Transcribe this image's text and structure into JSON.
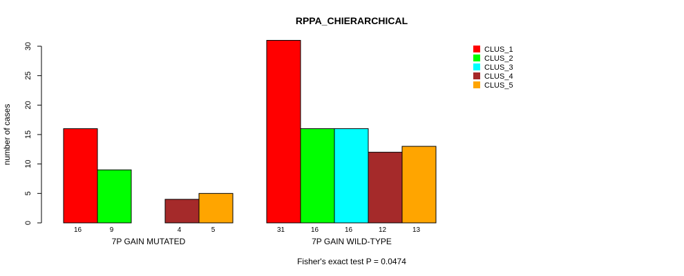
{
  "chart_data": {
    "type": "bar",
    "title": "RPPA_CHIERARCHICAL",
    "xlabel": "",
    "ylabel": "number of cases",
    "ylim": [
      0,
      30
    ],
    "yticks": [
      0,
      5,
      10,
      15,
      20,
      25,
      30
    ],
    "groups": [
      "7P GAIN MUTATED",
      "7P GAIN WILD-TYPE"
    ],
    "series": [
      {
        "name": "CLUS_1",
        "color": "#ff0000",
        "values": [
          16,
          31
        ]
      },
      {
        "name": "CLUS_2",
        "color": "#00ff00",
        "values": [
          9,
          16
        ]
      },
      {
        "name": "CLUS_3",
        "color": "#00ffff",
        "values": [
          0,
          16
        ]
      },
      {
        "name": "CLUS_4",
        "color": "#a52a2a",
        "values": [
          4,
          12
        ]
      },
      {
        "name": "CLUS_5",
        "color": "#ffa500",
        "values": [
          5,
          13
        ]
      }
    ],
    "count_labels": [
      [
        "16",
        "9",
        "",
        "4",
        "5"
      ],
      [
        "31",
        "16",
        "16",
        "12",
        "13"
      ]
    ],
    "legend_position": "top-right",
    "footnote": "Fisher's exact test P = 0.0474"
  }
}
